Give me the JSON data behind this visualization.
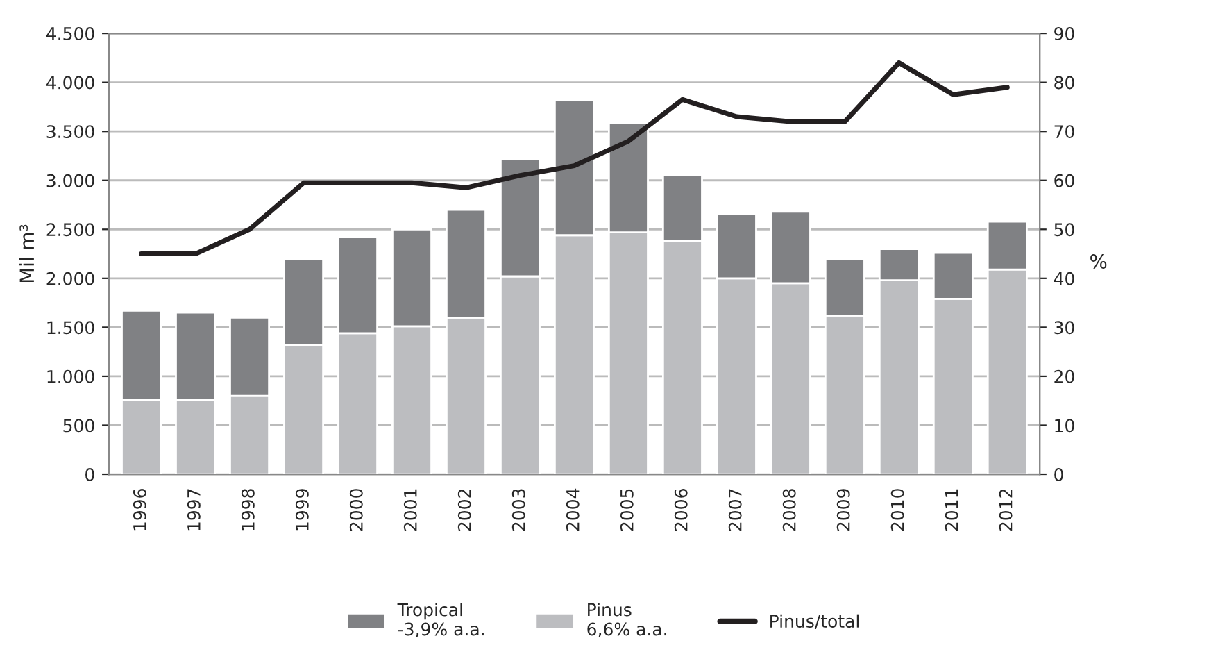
{
  "chart_data": {
    "type": "bar",
    "stacked": true,
    "xlabel": null,
    "ylabel": "Mil m³",
    "y2label": "%",
    "categories": [
      "1996",
      "1997",
      "1998",
      "1999",
      "2000",
      "2001",
      "2002",
      "2003",
      "2004",
      "2005",
      "2006",
      "2007",
      "2008",
      "2009",
      "2010",
      "2011",
      "2012"
    ],
    "series": [
      {
        "name": "Pinus\n6,6% a.a.",
        "color": "#bcbdc0",
        "values": [
          760,
          760,
          800,
          1320,
          1440,
          1510,
          1600,
          2020,
          2440,
          2470,
          2380,
          2000,
          1950,
          1620,
          1980,
          1790,
          2090
        ]
      },
      {
        "name": "Tropical\n-3,9% a.a.",
        "color": "#808184",
        "values": [
          910,
          890,
          800,
          880,
          980,
          990,
          1100,
          1200,
          1380,
          1120,
          670,
          660,
          730,
          580,
          320,
          470,
          490
        ]
      },
      {
        "name": "Pinus/total",
        "type": "line",
        "axis": "y2",
        "color": "#231f20",
        "values": [
          45,
          45,
          50,
          59.5,
          59.5,
          59.5,
          58.5,
          61,
          63,
          68,
          76.5,
          73,
          72,
          72,
          84,
          77.5,
          79
        ]
      }
    ],
    "ylim": [
      0,
      4500
    ],
    "yticks": [
      {
        "value": 0,
        "label": "0"
      },
      {
        "value": 500,
        "label": "500"
      },
      {
        "value": 1000,
        "label": "1.000"
      },
      {
        "value": 1500,
        "label": "1.500"
      },
      {
        "value": 2000,
        "label": "2.000"
      },
      {
        "value": 2500,
        "label": "2.500"
      },
      {
        "value": 3000,
        "label": "3.000"
      },
      {
        "value": 3500,
        "label": "3.500"
      },
      {
        "value": 4000,
        "label": "4.000"
      },
      {
        "value": 4500,
        "label": "4.500"
      }
    ],
    "y2lim": [
      0,
      90
    ],
    "y2ticks": [
      0,
      10,
      20,
      30,
      40,
      50,
      60,
      70,
      80,
      90
    ],
    "grid": "y",
    "legend": "bottom",
    "marker": "none",
    "line_style": "solid"
  }
}
